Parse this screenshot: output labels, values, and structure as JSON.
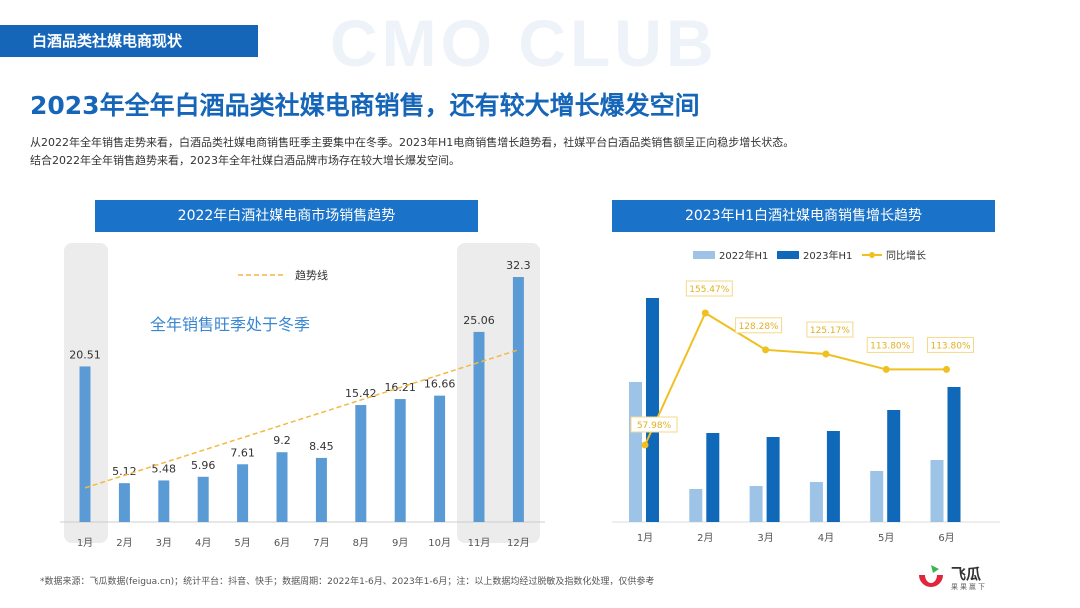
{
  "watermark": "CMO CLUB",
  "section_tag": "白酒品类社媒电商现状",
  "title": "2023年全年白酒品类社媒电商销售，还有较大增长爆发空间",
  "description": [
    "从2022年全年销售走势来看，白酒品类社媒电商销售旺季主要集中在冬季。2023年H1电商销售增长趋势看，社媒平台白酒品类销售额呈正向稳步增长状态。",
    "结合2022年全年销售趋势来看，2023年全年社媒白酒品牌市场存在较大增长爆发空间。"
  ],
  "chart_data": [
    {
      "type": "bar",
      "title": "2022年白酒社媒电商市场销售趋势",
      "categories": [
        "1月",
        "2月",
        "3月",
        "4月",
        "5月",
        "6月",
        "7月",
        "8月",
        "9月",
        "10月",
        "11月",
        "12月"
      ],
      "values": [
        20.51,
        5.12,
        5.48,
        5.96,
        7.61,
        9.2,
        8.45,
        15.42,
        16.21,
        16.66,
        25.06,
        32.3
      ],
      "value_labels": [
        "20.51",
        "5.12",
        "5.48",
        "5.96",
        "7.61",
        "9.2",
        "8.45",
        "15.42",
        "16.21",
        "16.66",
        "25.06",
        "32.3"
      ],
      "trendline": {
        "name": "趋势线",
        "start": 4.5,
        "end": 22.7
      },
      "annotation": "全年销售旺季处于冬季",
      "highlighted": [
        "1月",
        "11月",
        "12月"
      ],
      "ylim": [
        0,
        33
      ],
      "colors": {
        "bar": "#5b9bd5",
        "trend": "#f4b942",
        "highlight": "#ececec"
      }
    },
    {
      "type": "bar+line",
      "title": "2023年H1白酒社媒电商销售增长趋势",
      "categories": [
        "1月",
        "2月",
        "3月",
        "4月",
        "5月",
        "6月"
      ],
      "series": [
        {
          "name": "2022年H1",
          "values": [
            140,
            33,
            36,
            40,
            51,
            62
          ],
          "color": "#9dc3e6"
        },
        {
          "name": "2023年H1",
          "values": [
            224,
            89,
            85,
            91,
            112,
            135
          ],
          "color": "#1068b8"
        },
        {
          "name": "同比增长",
          "values": [
            57.98,
            155.47,
            128.28,
            125.17,
            113.8,
            113.8
          ],
          "labels": [
            "57.98%",
            "155.47%",
            "128.28%",
            "125.17%",
            "113.80%",
            "113.80%"
          ],
          "color": "#f0c020"
        }
      ],
      "legend": "top"
    }
  ],
  "footnote": "*数据来源：飞瓜数据(feigua.cn)；统计平台：抖音、快手；数据周期：2022年1-6月、2023年1-6月；注：以上数据均经过脱敏及指数化处理，仅供参考",
  "logo": {
    "name": "飞瓜",
    "slogan": "果果赢下"
  }
}
